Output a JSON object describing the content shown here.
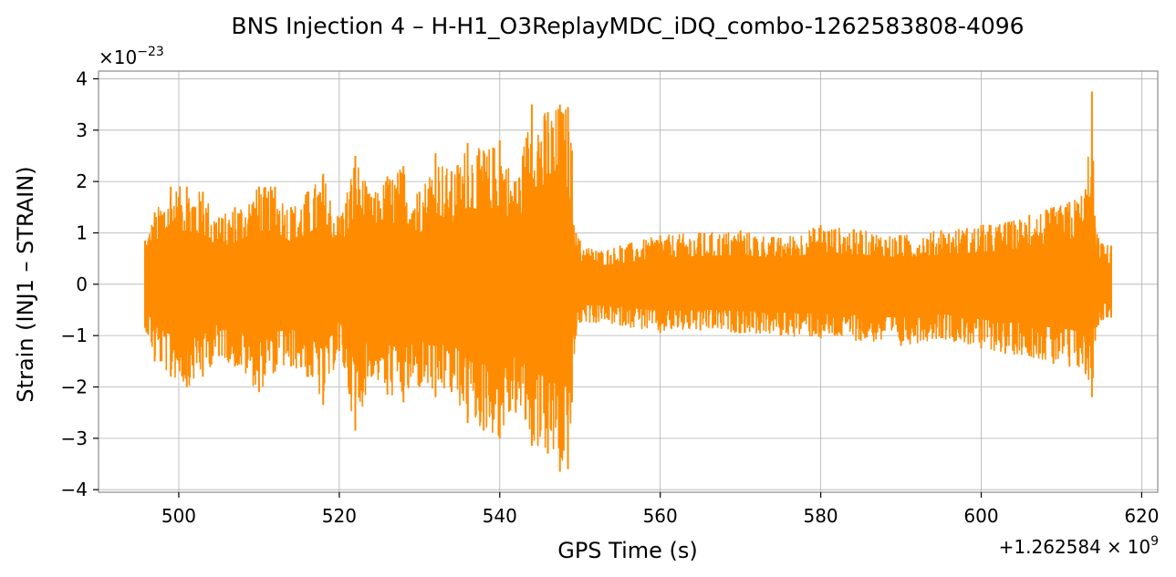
{
  "chart_data": {
    "type": "line",
    "title": "BNS Injection 4 – H-H1_O3ReplayMDC_iDQ_combo-1262583808-4096",
    "xlabel": "GPS Time (s)",
    "ylabel": "Strain (INJ1 – STRAIN)",
    "x_offset_label": "+1.262584×10⁹",
    "x_offset_base": "+1.262584",
    "x_offset_times": "×",
    "x_offset_mantissa": "10",
    "x_offset_exp": "9",
    "y_scale_label": "×10⁻²³",
    "y_scale_times": "×",
    "y_scale_mantissa": "10",
    "y_scale_exp": "−23",
    "xlim": [
      490,
      622
    ],
    "ylim": [
      -4.05,
      4.15
    ],
    "xticks": [
      500,
      520,
      540,
      560,
      580,
      600,
      620
    ],
    "xtick_labels": [
      "500",
      "520",
      "540",
      "560",
      "580",
      "600",
      "620"
    ],
    "yticks": [
      -4,
      -3,
      -2,
      -1,
      0,
      1,
      2,
      3,
      4
    ],
    "ytick_labels": [
      "−4",
      "−3",
      "−2",
      "−1",
      "0",
      "1",
      "2",
      "3",
      "4"
    ],
    "grid": true,
    "series": [
      {
        "color": "#ff8c00",
        "x_range": [
          495.8,
          616.2
        ],
        "envelope": {
          "x": [
            495.8,
            497,
            499,
            501,
            503,
            505,
            507,
            510,
            512,
            514,
            516,
            518,
            520,
            522,
            524,
            526,
            528,
            530,
            532,
            534,
            536,
            538,
            540,
            542,
            544,
            546,
            547.5,
            548.5,
            549,
            549.5,
            550,
            552,
            555,
            560,
            565,
            570,
            575,
            580,
            585,
            590,
            595,
            600,
            603,
            606,
            609,
            611,
            613,
            613.8,
            614.2,
            614.6,
            615,
            616.2
          ],
          "upper": [
            0.85,
            1.4,
            1.9,
            1.9,
            1.8,
            1.3,
            1.5,
            1.9,
            1.9,
            1.5,
            1.8,
            2.15,
            1.3,
            2.5,
            1.7,
            2.1,
            2.3,
            1.8,
            2.55,
            2.2,
            2.75,
            2.6,
            2.8,
            2.0,
            3.5,
            3.35,
            3.5,
            3.45,
            2.6,
            1.0,
            0.85,
            0.65,
            0.75,
            0.95,
            1.0,
            1.05,
            0.9,
            1.15,
            1.05,
            0.95,
            1.05,
            1.15,
            1.2,
            1.35,
            1.5,
            1.6,
            1.85,
            3.75,
            1.1,
            0.9,
            0.8,
            0.75
          ],
          "lower": [
            -0.85,
            -1.5,
            -1.8,
            -2.0,
            -1.8,
            -1.4,
            -1.6,
            -2.1,
            -1.7,
            -1.6,
            -1.8,
            -2.35,
            -1.3,
            -2.85,
            -1.8,
            -2.15,
            -2.3,
            -2.0,
            -2.2,
            -2.1,
            -2.7,
            -2.85,
            -3.0,
            -2.5,
            -3.15,
            -3.3,
            -3.65,
            -3.6,
            -2.3,
            -1.0,
            -0.75,
            -0.75,
            -0.8,
            -0.95,
            -0.9,
            -0.95,
            -1.0,
            -1.05,
            -1.1,
            -1.2,
            -1.05,
            -1.25,
            -1.35,
            -1.4,
            -1.55,
            -1.6,
            -1.75,
            -2.2,
            -1.1,
            -0.8,
            -0.7,
            -0.65
          ]
        }
      }
    ]
  }
}
